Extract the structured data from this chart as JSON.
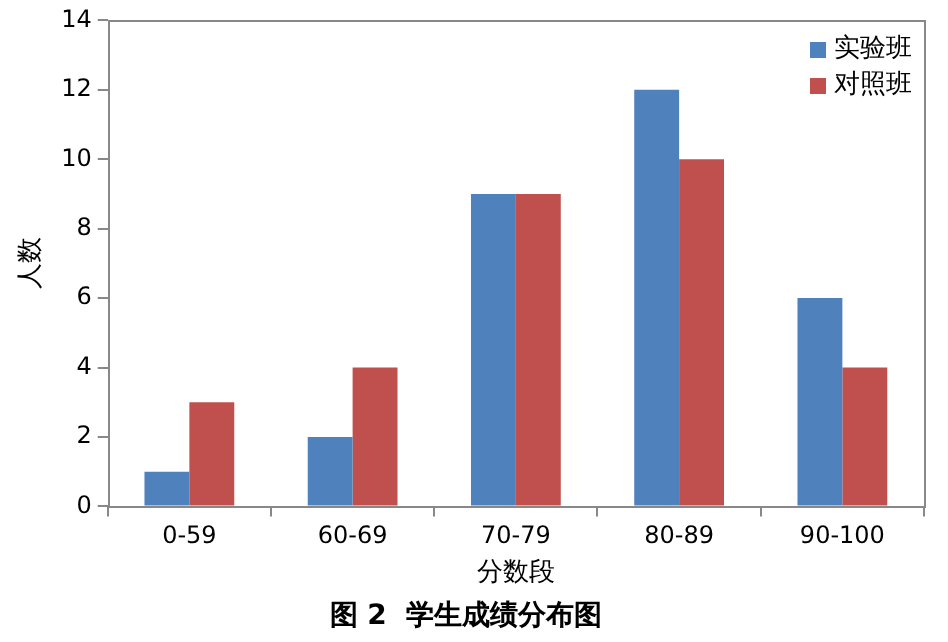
{
  "chart_data": {
    "type": "bar",
    "title": "图 2  学生成绩分布图",
    "xlabel": "分数段",
    "ylabel": "人数",
    "categories": [
      "0-59",
      "60-69",
      "70-79",
      "80-89",
      "90-100"
    ],
    "series": [
      {
        "name": "实验班",
        "color": "#4f81bd",
        "values": [
          1,
          2,
          9,
          12,
          6
        ]
      },
      {
        "name": "对照班",
        "color": "#c0504d",
        "values": [
          3,
          4,
          9,
          10,
          4
        ]
      }
    ],
    "ylim": [
      0,
      14
    ],
    "yticks": [
      0,
      2,
      4,
      6,
      8,
      10,
      12,
      14
    ],
    "grid": false,
    "legend": "top right"
  }
}
